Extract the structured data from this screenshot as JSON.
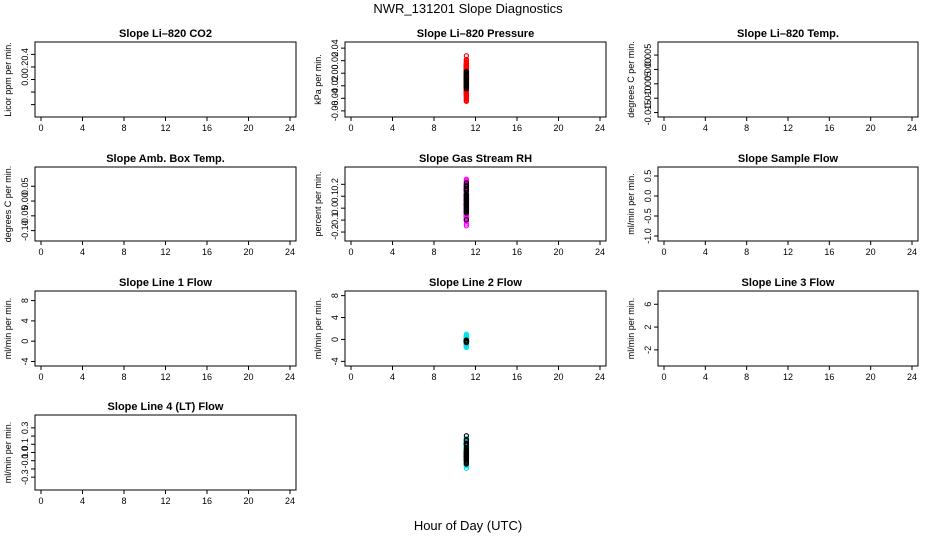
{
  "figure": {
    "title": "NWR_131201  Slope Diagnostics",
    "xlabel": "Hour of Day (UTC)"
  },
  "chart_data": [
    {
      "type": "scatter",
      "title": "Slope Li–820 CO2",
      "ylabel": "Licor ppm per min.",
      "xlim": [
        0,
        24
      ],
      "ylim": [
        -0.55,
        0.55
      ],
      "xticks": [
        0,
        4,
        8,
        12,
        16,
        20,
        24
      ],
      "yticks": [
        -0.4,
        -0.2,
        0.0,
        0.2,
        0.4
      ],
      "ytick_labels": [
        "",
        "",
        "0.0",
        "0.2",
        "0.4"
      ],
      "series": [
        {
          "color": "#ff0000",
          "spread": 0.18,
          "n": 420
        },
        {
          "color": "#000000",
          "spread": 0.1,
          "n": 45
        }
      ]
    },
    {
      "type": "scatter",
      "title": "Slope Li–820 Pressure",
      "ylabel": "kPa per min.",
      "xlim": [
        0,
        24
      ],
      "ylim": [
        -0.065,
        0.045
      ],
      "xticks": [
        0,
        4,
        8,
        12,
        16,
        20,
        24
      ],
      "yticks": [
        -0.06,
        -0.04,
        -0.02,
        0.0,
        0.02,
        0.04
      ],
      "ytick_labels": [
        "-0.06",
        "-0.04",
        "-0.02",
        "0.00",
        "0.02",
        "0.04"
      ],
      "series": [
        {
          "color": "#00cc00",
          "spread": 0.006,
          "n": 600
        },
        {
          "color": "#000000",
          "spread": 0.01,
          "n": 45
        }
      ]
    },
    {
      "type": "scatter",
      "title": "Slope Li–820 Temp.",
      "ylabel": "degrees C per min.",
      "xlim": [
        0,
        24
      ],
      "ylim": [
        -0.0155,
        0.0085
      ],
      "xticks": [
        0,
        4,
        8,
        12,
        16,
        20,
        24
      ],
      "yticks": [
        -0.015,
        -0.01,
        -0.005,
        0.0,
        0.005
      ],
      "ytick_labels": [
        "-0.015",
        "-0.010",
        "-0.005",
        "0.000",
        "0.005"
      ],
      "series": [
        {
          "color": "#ff00ff",
          "spread": 0.0035,
          "n": 420
        },
        {
          "color": "#000000",
          "spread": 0.0025,
          "n": 45
        }
      ]
    },
    {
      "type": "scatter",
      "title": "Slope Amb. Box Temp.",
      "ylabel": "degrees C per min.",
      "xlim": [
        0,
        24
      ],
      "ylim": [
        -0.125,
        0.105
      ],
      "xticks": [
        0,
        4,
        8,
        12,
        16,
        20,
        24
      ],
      "yticks": [
        -0.1,
        -0.05,
        0.0,
        0.05
      ],
      "ytick_labels": [
        "-0.10",
        "-0.05",
        "0.00",
        "0.05"
      ],
      "series": [
        {
          "color": "#ff00ff",
          "spread": 0.04,
          "n": 420
        },
        {
          "color": "#000000",
          "spread": 0.04,
          "n": 45
        }
      ]
    },
    {
      "type": "scatter",
      "title": "Slope Gas Stream RH",
      "ylabel": "percent per min.",
      "xlim": [
        0,
        24
      ],
      "ylim": [
        -0.25,
        0.32
      ],
      "xticks": [
        0,
        4,
        8,
        12,
        16,
        20,
        24
      ],
      "yticks": [
        -0.2,
        -0.1,
        0.0,
        0.1,
        0.2
      ],
      "ytick_labels": [
        "-0.2",
        "-0.1",
        "0.0",
        "0.1",
        "0.2"
      ],
      "series": [
        {
          "color": "#ffaa00",
          "spread": 0.07,
          "n": 600
        },
        {
          "color": "#000000",
          "spread": 0.06,
          "n": 45
        }
      ]
    },
    {
      "type": "scatter",
      "title": "Slope Sample Flow",
      "ylabel": "ml/min per min.",
      "xlim": [
        0,
        24
      ],
      "ylim": [
        -1.05,
        0.65
      ],
      "xticks": [
        0,
        4,
        8,
        12,
        16,
        20,
        24
      ],
      "yticks": [
        -1.0,
        -0.5,
        0.0,
        0.5
      ],
      "ytick_labels": [
        "-1.0",
        "-0.5",
        "0.0",
        "0.5"
      ],
      "series": [
        {
          "color": "#0000cc",
          "spread": 0.2,
          "n": 420
        },
        {
          "color": "#000000",
          "spread": 0.12,
          "n": 45
        }
      ]
    },
    {
      "type": "scatter",
      "title": "Slope Line 1 Flow",
      "ylabel": "ml/min per min.",
      "xlim": [
        0,
        24
      ],
      "ylim": [
        -4.3,
        9.3
      ],
      "xticks": [
        0,
        4,
        8,
        12,
        16,
        20,
        24
      ],
      "yticks": [
        -4,
        0,
        4,
        8
      ],
      "ytick_labels": [
        "-4",
        "0",
        "4",
        "8"
      ],
      "series": [
        {
          "color": "#00e5ee",
          "spread": 0.7,
          "n": 420
        },
        {
          "color": "#000000",
          "spread": 0.15,
          "n": 45
        }
      ]
    },
    {
      "type": "scatter",
      "title": "Slope Line 2 Flow",
      "ylabel": "ml/min per min.",
      "xlim": [
        0,
        24
      ],
      "ylim": [
        -4.3,
        8.3
      ],
      "xticks": [
        0,
        4,
        8,
        12,
        16,
        20,
        24
      ],
      "yticks": [
        -4,
        0,
        4,
        8
      ],
      "ytick_labels": [
        "-4",
        "0",
        "4",
        "8"
      ],
      "series": [
        {
          "color": "#00e5ee",
          "spread": 0.8,
          "n": 420
        },
        {
          "color": "#000000",
          "spread": 0.6,
          "n": 45
        }
      ]
    },
    {
      "type": "scatter",
      "title": "Slope Line 3 Flow",
      "ylabel": "ml/min per min.",
      "xlim": [
        0,
        24
      ],
      "ylim": [
        -4.3,
        7.8
      ],
      "xticks": [
        0,
        4,
        8,
        12,
        16,
        20,
        24
      ],
      "yticks": [
        -2,
        2,
        6
      ],
      "ytick_labels": [
        "-2",
        "2",
        "6"
      ],
      "series": [
        {
          "color": "#00e5ee",
          "spread": 0.9,
          "n": 420
        },
        {
          "color": "#000000",
          "spread": 0.9,
          "n": 45
        }
      ]
    },
    {
      "type": "scatter",
      "title": "Slope Line 4 (LT) Flow",
      "ylabel": "ml/min per min.",
      "xlim": [
        0,
        24
      ],
      "ylim": [
        -0.42,
        0.42
      ],
      "xticks": [
        0,
        4,
        8,
        12,
        16,
        20,
        24
      ],
      "yticks": [
        -0.3,
        -0.2,
        -0.1,
        0.0,
        0.1,
        0.2,
        0.3
      ],
      "ytick_labels": [
        "-0.3",
        "",
        "-0.1",
        "0.0",
        "0.1",
        "",
        "0.3"
      ],
      "series": [
        {
          "color": "#00e5ee",
          "spread": 0.1,
          "n": 420
        },
        {
          "color": "#000000",
          "spread": 0.1,
          "n": 45
        }
      ]
    }
  ]
}
